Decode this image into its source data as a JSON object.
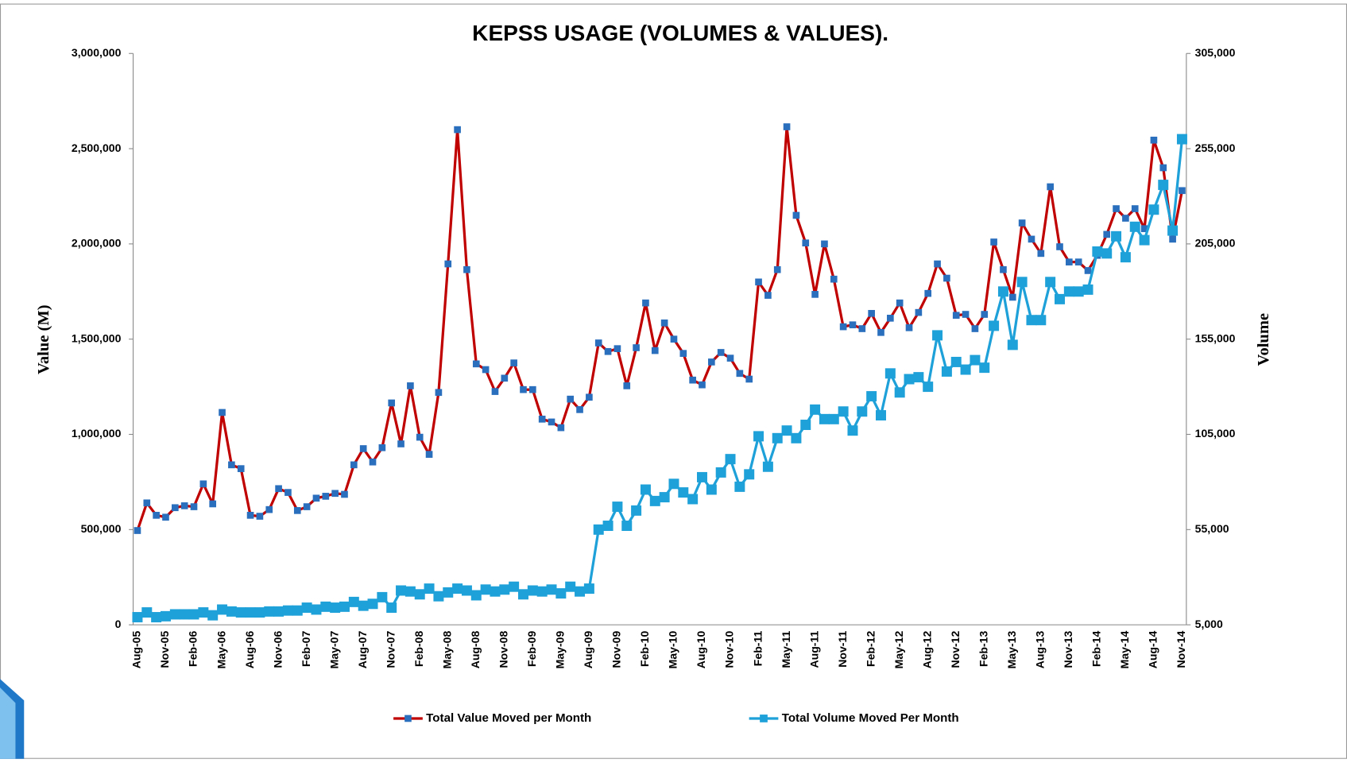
{
  "chart_data": {
    "type": "line",
    "title": "KEPSS USAGE (VOLUMES & VALUES).",
    "y_label": "Value (M)",
    "y2_label": "Volume",
    "categories": [
      "Aug-05",
      null,
      null,
      "Nov-05",
      null,
      null,
      "Feb-06",
      null,
      null,
      "May-06",
      null,
      null,
      "Aug-06",
      null,
      null,
      "Nov-06",
      null,
      null,
      "Feb-07",
      null,
      null,
      "May-07",
      null,
      null,
      "Aug-07",
      null,
      null,
      "Nov-07",
      null,
      null,
      "Feb-08",
      null,
      null,
      "May-08",
      null,
      null,
      "Aug-08",
      null,
      null,
      "Nov-08",
      null,
      null,
      "Feb-09",
      null,
      null,
      "May-09",
      null,
      null,
      "Aug-09",
      null,
      null,
      "Nov-09",
      null,
      null,
      "Feb-10",
      null,
      null,
      "May-10",
      null,
      null,
      "Aug-10",
      null,
      null,
      "Nov-10",
      null,
      null,
      "Feb-11",
      null,
      null,
      "May-11",
      null,
      null,
      "Aug-11",
      null,
      null,
      "Nov-11",
      null,
      null,
      "Feb-12",
      null,
      null,
      "May-12",
      null,
      null,
      "Aug-12",
      null,
      null,
      "Nov-12",
      null,
      null,
      "Feb-13",
      null,
      null,
      "May-13",
      null,
      null,
      "Aug-13",
      null,
      null,
      "Nov-13",
      null,
      null,
      "Feb-14",
      null,
      null,
      "May-14",
      null,
      null,
      "Aug-14",
      null,
      null,
      "Nov-14"
    ],
    "series": [
      {
        "name": "Total Value Moved per Month",
        "color": "#c00000",
        "marker_color": "#2a6fbd",
        "marker_size": 8,
        "values": [
          495000,
          640000,
          575000,
          565000,
          615000,
          625000,
          620000,
          740000,
          635000,
          1115000,
          840000,
          820000,
          575000,
          570000,
          605000,
          715000,
          695000,
          600000,
          620000,
          665000,
          675000,
          690000,
          685000,
          840000,
          925000,
          855000,
          930000,
          1165000,
          950000,
          1255000,
          985000,
          895000,
          1220000,
          1895000,
          2600000,
          1865000,
          1370000,
          1340000,
          1225000,
          1295000,
          1375000,
          1235000,
          1235000,
          1080000,
          1065000,
          1035000,
          1185000,
          1130000,
          1195000,
          1480000,
          1435000,
          1450000,
          1255000,
          1455000,
          1690000,
          1440000,
          1585000,
          1500000,
          1425000,
          1285000,
          1260000,
          1380000,
          1430000,
          1400000,
          1320000,
          1290000,
          1800000,
          1730000,
          1865000,
          2615000,
          2150000,
          2005000,
          1735000,
          2000000,
          1815000,
          1565000,
          1575000,
          1555000,
          1635000,
          1535000,
          1610000,
          1690000,
          1560000,
          1640000,
          1740000,
          1895000,
          1820000,
          1625000,
          1630000,
          1555000,
          1630000,
          2010000,
          1865000,
          1720000,
          2110000,
          2025000,
          1950000,
          2300000,
          1985000,
          1905000,
          1905000,
          1860000,
          1940000,
          2050000,
          2185000,
          2135000,
          2185000,
          2080000,
          2545000,
          2400000,
          2025000,
          2280000
        ]
      },
      {
        "name": "Total Volume Moved Per Month",
        "color": "#1ea0d8",
        "marker_color": "#1ea0d8",
        "marker_size": 12,
        "axis": "y2",
        "values": [
          9000,
          11500,
          9000,
          9500,
          10500,
          10500,
          10500,
          11500,
          10000,
          13000,
          12000,
          11500,
          11500,
          11500,
          12000,
          12000,
          12500,
          12500,
          14000,
          13000,
          14500,
          14000,
          14500,
          17000,
          15000,
          16000,
          19500,
          14000,
          23000,
          22500,
          21000,
          24000,
          20000,
          22000,
          24000,
          23000,
          20500,
          23500,
          22500,
          23500,
          25000,
          21000,
          23000,
          22500,
          23500,
          21500,
          25000,
          22500,
          24000,
          55000,
          57000,
          67000,
          57000,
          65000,
          76000,
          70000,
          72000,
          79000,
          74500,
          71000,
          82500,
          76000,
          85000,
          92000,
          77500,
          84000,
          104000,
          88000,
          103000,
          107000,
          103000,
          110000,
          118000,
          113000,
          113000,
          117000,
          107000,
          117000,
          125000,
          115000,
          137000,
          127000,
          134000,
          135000,
          130000,
          157000,
          138000,
          143000,
          139000,
          144000,
          140000,
          162000,
          180000,
          152000,
          185000,
          165000,
          165000,
          185000,
          176000,
          180000,
          180000,
          181000,
          201000,
          200000,
          209000,
          198000,
          214000,
          207000,
          223000,
          236000,
          212000,
          260000
        ]
      }
    ],
    "ylim": [
      0,
      3000000
    ],
    "yticks": [
      0,
      {
        "value": 500000,
        "label": "500,000"
      },
      {
        "value": 1000000,
        "label": "1,000,000"
      },
      {
        "value": 1500000,
        "label": "1,500,000"
      },
      {
        "value": 2000000,
        "label": "2,000,000"
      },
      {
        "value": 2500000,
        "label": "2,500,000"
      },
      {
        "value": 3000000,
        "label": "3,000,000"
      }
    ],
    "y2lim": [
      5000,
      305000
    ],
    "y2ticks": [
      {
        "value": 5000,
        "label": "5,000"
      },
      {
        "value": 55000,
        "label": "55,000"
      },
      {
        "value": 105000,
        "label": "105,000"
      },
      {
        "value": 155000,
        "label": "155,000"
      },
      {
        "value": 205000,
        "label": "205,000"
      },
      {
        "value": 255000,
        "label": "255,000"
      },
      {
        "value": 305000,
        "label": "305,000"
      }
    ],
    "grid": false,
    "legend": "bottom"
  }
}
